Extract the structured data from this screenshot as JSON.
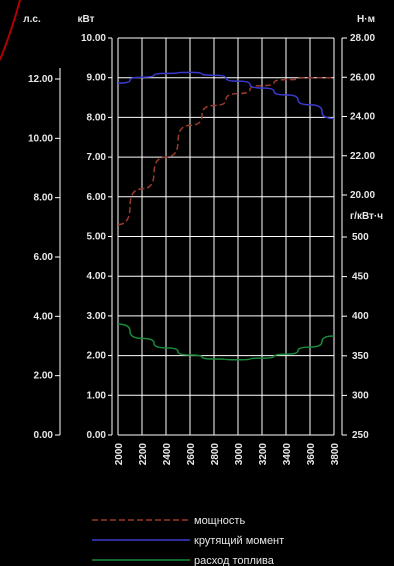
{
  "chart_data": {
    "type": "line",
    "x": {
      "ticks": [
        2000,
        2200,
        2400,
        2600,
        2800,
        3000,
        3200,
        3400,
        3600,
        3800
      ],
      "range": [
        2000,
        3800
      ]
    },
    "axes": {
      "hp": {
        "unit": "л.с.",
        "ticks": [
          "0.00",
          "2.00",
          "4.00",
          "6.00",
          "8.00",
          "10.00",
          "12.00"
        ]
      },
      "kw": {
        "unit": "кВт",
        "ticks": [
          "0.00",
          "1.00",
          "2.00",
          "3.00",
          "4.00",
          "5.00",
          "6.00",
          "7.00",
          "8.00",
          "9.00",
          "10.00"
        ],
        "range": [
          0,
          10
        ]
      },
      "torque": {
        "unit": "Н·м",
        "ticks": [
          "20.00",
          "22.00",
          "24.00",
          "26.00",
          "28.00"
        ],
        "range": [
          20,
          28
        ]
      },
      "fuel": {
        "unit": "г/кВт·ч",
        "ticks": [
          "250",
          "300",
          "350",
          "400",
          "450",
          "500"
        ],
        "range": [
          250,
          500
        ]
      }
    },
    "series": [
      {
        "name": "мощность",
        "axis": "kw",
        "color": "#9a3a2a",
        "dash": "6,3",
        "x": [
          2000,
          2200,
          2400,
          2600,
          2800,
          3000,
          3200,
          3400,
          3600,
          3800
        ],
        "y": [
          5.3,
          6.2,
          7.0,
          7.8,
          8.3,
          8.6,
          8.8,
          8.95,
          9.0,
          9.0
        ]
      },
      {
        "name": "крутящий момент",
        "axis": "torque",
        "color": "#3a3acf",
        "dash": "",
        "x": [
          2000,
          2200,
          2400,
          2600,
          2800,
          3000,
          3200,
          3400,
          3600,
          3800
        ],
        "y": [
          25.7,
          26.0,
          26.2,
          26.25,
          26.1,
          25.8,
          25.45,
          25.1,
          24.6,
          23.9
        ]
      },
      {
        "name": "расход топлива",
        "axis": "fuel",
        "color": "#1a8a3a",
        "dash": "",
        "x": [
          2000,
          2200,
          2400,
          2600,
          2800,
          3000,
          3200,
          3400,
          3600,
          3800
        ],
        "y": [
          390,
          372,
          360,
          351,
          346,
          345,
          347,
          352,
          361,
          375
        ]
      }
    ]
  }
}
